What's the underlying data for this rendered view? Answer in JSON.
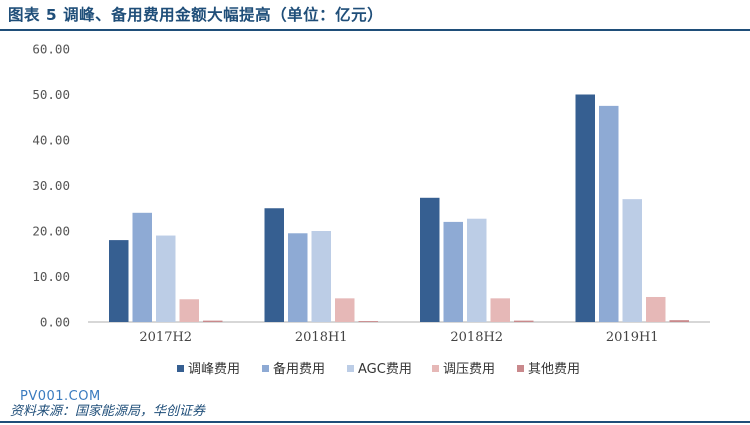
{
  "figure": {
    "title": "图表 5  调峰、备用费用金额大幅提高（单位：亿元）",
    "source": "资料来源：国家能源局，华创证券",
    "watermark": "PV001.COM"
  },
  "chart_data": {
    "type": "bar",
    "title": "图表 5  调峰、备用费用金额大幅提高（单位：亿元）",
    "categories": [
      "2017H2",
      "2018H1",
      "2018H2",
      "2019H1"
    ],
    "series": [
      {
        "name": "调峰费用",
        "color": "#365f91",
        "values": [
          18.0,
          25.0,
          27.3,
          50.0
        ]
      },
      {
        "name": "备用费用",
        "color": "#8eaad4",
        "values": [
          24.0,
          19.5,
          22.0,
          47.5
        ]
      },
      {
        "name": "AGC费用",
        "color": "#bccde6",
        "values": [
          19.0,
          20.0,
          22.7,
          27.0
        ]
      },
      {
        "name": "调压费用",
        "color": "#e6b8b7",
        "values": [
          5.0,
          5.2,
          5.2,
          5.5
        ]
      },
      {
        "name": "其他费用",
        "color": "#c9898c",
        "values": [
          0.3,
          0.2,
          0.3,
          0.4
        ]
      }
    ],
    "yticks": [
      "0.00",
      "10.00",
      "20.00",
      "30.00",
      "40.00",
      "50.00",
      "60.00"
    ],
    "ylim": [
      0,
      60
    ],
    "xlabel": "",
    "ylabel": "",
    "grid": false,
    "legend_position": "bottom"
  }
}
